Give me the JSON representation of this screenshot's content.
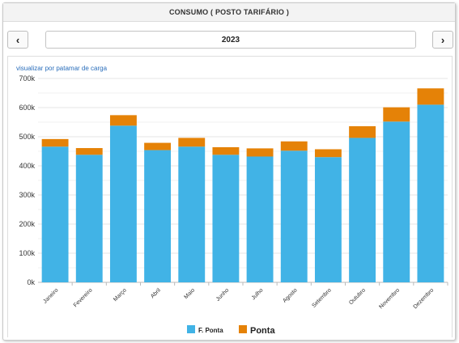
{
  "header": {
    "title": "CONSUMO ( POSTO TARIFÁRIO )"
  },
  "nav": {
    "prev_icon": "‹",
    "next_icon": "›",
    "year": "2023"
  },
  "view_link": "visualizar por patamar de carga",
  "colors": {
    "f_ponta": "#41b3e6",
    "ponta": "#e58207",
    "grid": "#e6e6e6"
  },
  "chart_data": {
    "type": "bar",
    "stacked": true,
    "categories": [
      "Janeiro",
      "Fevereiro",
      "Março",
      "Abril",
      "Maio",
      "Junho",
      "Julho",
      "Agosto",
      "Setembro",
      "Outubro",
      "Novembro",
      "Dezembro"
    ],
    "series": [
      {
        "name": "F. Ponta",
        "values": [
          466000,
          438000,
          538000,
          454000,
          466000,
          438000,
          432000,
          452000,
          430000,
          496000,
          552000,
          610000
        ]
      },
      {
        "name": "Ponta",
        "values": [
          26000,
          23000,
          36000,
          25000,
          30000,
          26000,
          28000,
          32000,
          27000,
          40000,
          49000,
          56000
        ]
      }
    ],
    "ylim": [
      0,
      700000
    ],
    "yticks": [
      "0k",
      "100k",
      "200k",
      "300k",
      "400k",
      "500k",
      "600k",
      "700k"
    ],
    "grid": true,
    "legend_position": "bottom"
  }
}
